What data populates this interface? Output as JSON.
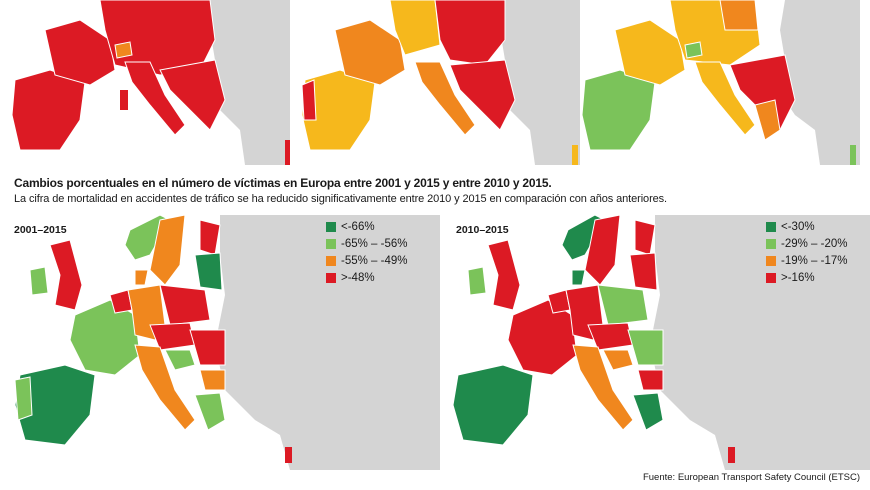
{
  "caption": {
    "title": "Cambios porcentuales en el número de víctimas en Europa entre 2001 y 2015 y entre 2010 y 2015.",
    "subtitle": "La cifra de mortalidad en accidentes de tráfico se ha reducido significativamente entre 2010 y 2015 en comparación con años anteriores."
  },
  "colors": {
    "dark_green": "#1f8a4c",
    "light_green": "#7bc35a",
    "orange": "#f0871e",
    "red": "#dc1a24",
    "yellow": "#f6b81c",
    "non_data": "#d4d4d4",
    "border": "#ffffff"
  },
  "maps": {
    "map_2001": {
      "label": "2001–2015",
      "legend": [
        {
          "label": "<-66%",
          "color": "#1f8a4c"
        },
        {
          "label": "-65% – -56%",
          "color": "#7bc35a"
        },
        {
          "label": "-55% – -49%",
          "color": "#f0871e"
        },
        {
          "label": ">-48%",
          "color": "#dc1a24"
        }
      ]
    },
    "map_2010": {
      "label": "2010–2015",
      "legend": [
        {
          "label": "<-30%",
          "color": "#1f8a4c"
        },
        {
          "label": "-29% – -20%",
          "color": "#7bc35a"
        },
        {
          "label": "-19% – -17%",
          "color": "#f0871e"
        },
        {
          "label": ">-16%",
          "color": "#dc1a24"
        }
      ]
    }
  },
  "source": "Fuente: European Transport Safety Council (ETSC)"
}
